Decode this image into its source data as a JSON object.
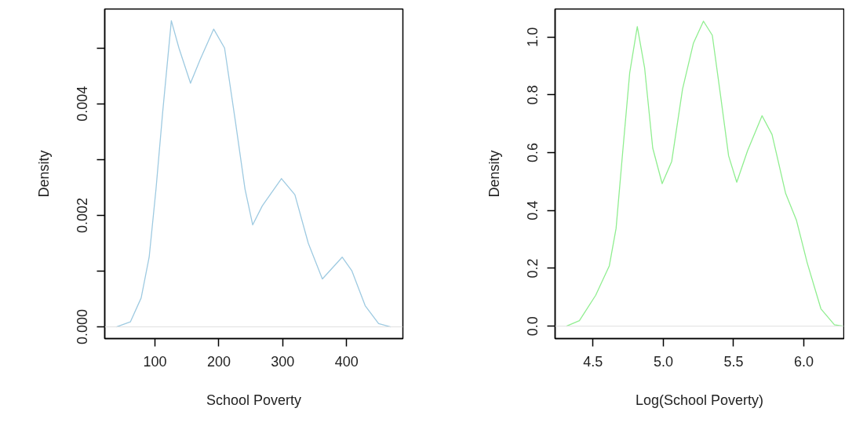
{
  "chart_data": [
    {
      "type": "line",
      "xlabel": "School Poverty",
      "ylabel": "Density",
      "x": [
        39.7,
        61.6,
        78.5,
        91,
        101.7,
        112,
        125.7,
        137.6,
        155.7,
        171,
        192,
        209,
        226,
        241,
        253,
        268,
        298,
        319,
        340,
        362,
        393,
        408,
        429,
        450,
        469
      ],
      "series": [
        {
          "color": "#9ecae1",
          "values": [
            0,
            9e-05,
            0.00052,
            0.00125,
            0.00247,
            0.00383,
            0.00549,
            0.005,
            0.00437,
            0.0048,
            0.00534,
            0.005,
            0.00368,
            0.00247,
            0.00183,
            0.00217,
            0.00266,
            0.00237,
            0.0015,
            0.00086,
            0.00125,
            0.00101,
            0.00038,
            6e-05,
            0
          ]
        }
      ],
      "xlim": [
        21.5,
        488
      ],
      "ylim": [
        -0.00021,
        0.0057
      ],
      "xticks": [
        100,
        200,
        300,
        400
      ],
      "yticks": [
        {
          "value": 0,
          "label": "0.000"
        },
        {
          "value": 0.001,
          "label": null
        },
        {
          "value": 0.002,
          "label": "0.002"
        },
        {
          "value": 0.003,
          "label": null
        },
        {
          "value": 0.004,
          "label": "0.004"
        },
        {
          "value": 0.005,
          "label": null
        }
      ],
      "ref_lines": [
        {
          "axis": "y",
          "value": 0,
          "color": "#e0e0e0"
        }
      ]
    },
    {
      "type": "line",
      "xlabel": "Log(School Poverty)",
      "ylabel": "Density",
      "x": [
        4.311,
        4.403,
        4.519,
        4.616,
        4.664,
        4.712,
        4.761,
        4.815,
        4.867,
        4.925,
        4.992,
        5.06,
        5.137,
        5.214,
        5.286,
        5.349,
        5.407,
        5.465,
        5.523,
        5.6,
        5.703,
        5.774,
        5.871,
        5.948,
        6.025,
        6.122,
        6.218,
        6.28
      ],
      "series": [
        {
          "color": "#90ee90",
          "values": [
            0,
            0.019,
            0.107,
            0.209,
            0.338,
            0.607,
            0.876,
            1.036,
            0.894,
            0.616,
            0.493,
            0.57,
            0.82,
            0.978,
            1.055,
            1.006,
            0.8,
            0.589,
            0.498,
            0.607,
            0.728,
            0.663,
            0.459,
            0.366,
            0.218,
            0.06,
            0.005,
            0
          ]
        }
      ],
      "xlim": [
        4.23,
        6.285
      ],
      "ylim": [
        -0.043,
        1.097
      ],
      "xticks": [
        {
          "value": 4.5,
          "label": "4.5"
        },
        {
          "value": 5.0,
          "label": "5.0"
        },
        {
          "value": 5.5,
          "label": "5.5"
        },
        {
          "value": 6.0,
          "label": "6.0"
        }
      ],
      "yticks": [
        {
          "value": 0,
          "label": "0.0"
        },
        {
          "value": 0.2,
          "label": "0.2"
        },
        {
          "value": 0.4,
          "label": "0.4"
        },
        {
          "value": 0.6,
          "label": "0.6"
        },
        {
          "value": 0.8,
          "label": "0.8"
        },
        {
          "value": 1.0,
          "label": "1.0"
        }
      ],
      "ref_lines": [
        {
          "axis": "y",
          "value": 0,
          "color": "#e0e0e0"
        }
      ]
    }
  ]
}
